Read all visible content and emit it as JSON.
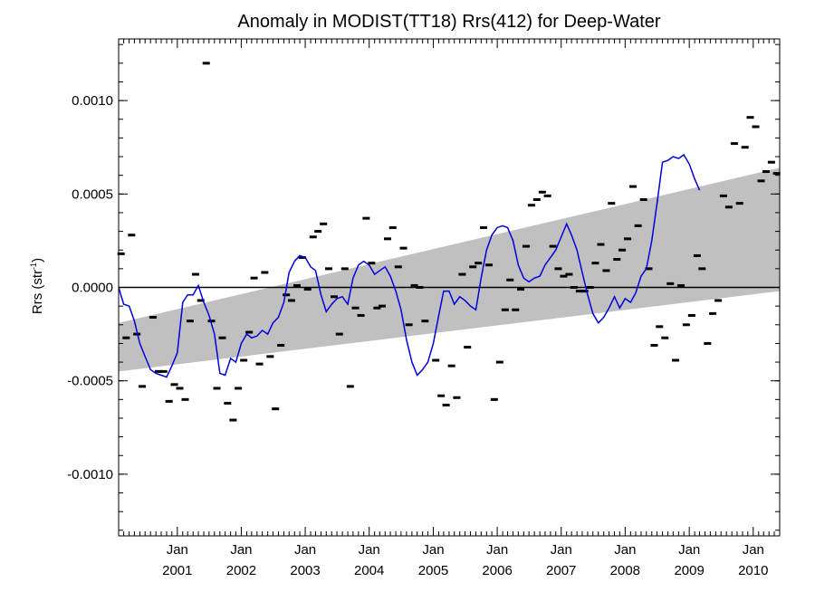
{
  "chart_data": {
    "type": "scatter",
    "title": "Anomaly in MODIST(TT18) Rrs(412) for Deep-Water",
    "ylabel": "Rrs (str",
    "ylabel_sup": "-1",
    "ylabel_close": ")",
    "xlabel": "",
    "xlim": [
      "2000-02-01",
      "2010-06-01"
    ],
    "ylim": [
      -0.00133,
      0.00133
    ],
    "y_ticks": [
      {
        "value": 0.001,
        "label": "0.0010"
      },
      {
        "value": 0.0005,
        "label": "0.0005"
      },
      {
        "value": 0.0,
        "label": "0.0000"
      },
      {
        "value": -0.0005,
        "label": "-0.0005"
      },
      {
        "value": -0.001,
        "label": "-0.0010"
      }
    ],
    "x_ticks": [
      {
        "date": "2001-01-01",
        "month": "Jan",
        "year": "2001"
      },
      {
        "date": "2002-01-01",
        "month": "Jan",
        "year": "2002"
      },
      {
        "date": "2003-01-01",
        "month": "Jan",
        "year": "2003"
      },
      {
        "date": "2004-01-01",
        "month": "Jan",
        "year": "2004"
      },
      {
        "date": "2005-01-01",
        "month": "Jan",
        "year": "2005"
      },
      {
        "date": "2006-01-01",
        "month": "Jan",
        "year": "2006"
      },
      {
        "date": "2007-01-01",
        "month": "Jan",
        "year": "2007"
      },
      {
        "date": "2008-01-01",
        "month": "Jan",
        "year": "2008"
      },
      {
        "date": "2009-01-01",
        "month": "Jan",
        "year": "2009"
      },
      {
        "date": "2010-01-01",
        "month": "Jan",
        "year": "2010"
      }
    ],
    "colors": {
      "points": "#000000",
      "smooth": "#0000dd",
      "band": "#c0c0c0",
      "zero_line": "#000000"
    },
    "band": {
      "start": {
        "date": "2000-02-01",
        "lower": -0.00045,
        "upper": -0.00019
      },
      "end": {
        "date": "2010-06-01",
        "lower": -2e-05,
        "upper": 0.00064
      }
    },
    "monthly_anomaly": [
      {
        "date": "2000-02",
        "value": 0.00018
      },
      {
        "date": "2000-03",
        "value": -0.00027
      },
      {
        "date": "2000-04",
        "value": 0.00028
      },
      {
        "date": "2000-05",
        "value": -0.00025
      },
      {
        "date": "2000-06",
        "value": -0.00053
      },
      {
        "date": "2000-08",
        "value": -0.00016
      },
      {
        "date": "2000-09",
        "value": -0.00045
      },
      {
        "date": "2000-10",
        "value": -0.00045
      },
      {
        "date": "2000-11",
        "value": -0.00061
      },
      {
        "date": "2000-12",
        "value": -0.00052
      },
      {
        "date": "2001-01",
        "value": -0.00054
      },
      {
        "date": "2001-02",
        "value": -0.0006
      },
      {
        "date": "2001-03",
        "value": -0.00018
      },
      {
        "date": "2001-04",
        "value": 7e-05
      },
      {
        "date": "2001-05",
        "value": -7e-05
      },
      {
        "date": "2001-06",
        "value": 0.0012
      },
      {
        "date": "2001-07",
        "value": -0.00018
      },
      {
        "date": "2001-08",
        "value": -0.00054
      },
      {
        "date": "2001-09",
        "value": -0.00027
      },
      {
        "date": "2001-10",
        "value": -0.00062
      },
      {
        "date": "2001-11",
        "value": -0.00071
      },
      {
        "date": "2001-12",
        "value": -0.00054
      },
      {
        "date": "2002-01",
        "value": -0.00039
      },
      {
        "date": "2002-02",
        "value": -0.00024
      },
      {
        "date": "2002-03",
        "value": 5e-05
      },
      {
        "date": "2002-04",
        "value": -0.00041
      },
      {
        "date": "2002-05",
        "value": 8e-05
      },
      {
        "date": "2002-06",
        "value": -0.00037
      },
      {
        "date": "2002-07",
        "value": -0.00065
      },
      {
        "date": "2002-08",
        "value": -0.00031
      },
      {
        "date": "2002-09",
        "value": -4e-05
      },
      {
        "date": "2002-10",
        "value": -7e-05
      },
      {
        "date": "2002-11",
        "value": 1e-05
      },
      {
        "date": "2002-12",
        "value": 0.00016
      },
      {
        "date": "2003-01",
        "value": -1e-05
      },
      {
        "date": "2003-02",
        "value": 0.00027
      },
      {
        "date": "2003-03",
        "value": 0.0003
      },
      {
        "date": "2003-04",
        "value": 0.00034
      },
      {
        "date": "2003-05",
        "value": 0.0001
      },
      {
        "date": "2003-06",
        "value": -5e-05
      },
      {
        "date": "2003-07",
        "value": -0.00025
      },
      {
        "date": "2003-08",
        "value": 0.0001
      },
      {
        "date": "2003-09",
        "value": -0.00053
      },
      {
        "date": "2003-10",
        "value": -0.00011
      },
      {
        "date": "2003-11",
        "value": -0.00015
      },
      {
        "date": "2003-12",
        "value": 0.00037
      },
      {
        "date": "2004-01",
        "value": 0.00013
      },
      {
        "date": "2004-02",
        "value": -0.00011
      },
      {
        "date": "2004-03",
        "value": -0.0001
      },
      {
        "date": "2004-04",
        "value": 0.00026
      },
      {
        "date": "2004-05",
        "value": 0.00032
      },
      {
        "date": "2004-06",
        "value": 0.00011
      },
      {
        "date": "2004-07",
        "value": 0.00021
      },
      {
        "date": "2004-08",
        "value": -0.0002
      },
      {
        "date": "2004-09",
        "value": 1e-05
      },
      {
        "date": "2004-10",
        "value": 0.0
      },
      {
        "date": "2004-11",
        "value": -0.00018
      },
      {
        "date": "2005-01",
        "value": -0.00039
      },
      {
        "date": "2005-02",
        "value": -0.00058
      },
      {
        "date": "2005-03",
        "value": -0.00063
      },
      {
        "date": "2005-04",
        "value": -0.00042
      },
      {
        "date": "2005-05",
        "value": -0.00059
      },
      {
        "date": "2005-06",
        "value": 7e-05
      },
      {
        "date": "2005-07",
        "value": -0.00032
      },
      {
        "date": "2005-08",
        "value": 0.00011
      },
      {
        "date": "2005-09",
        "value": 0.00013
      },
      {
        "date": "2005-10",
        "value": 0.00032
      },
      {
        "date": "2005-11",
        "value": 0.00012
      },
      {
        "date": "2005-12",
        "value": -0.0006
      },
      {
        "date": "2006-01",
        "value": -0.0004
      },
      {
        "date": "2006-02",
        "value": -0.00012
      },
      {
        "date": "2006-03",
        "value": 4e-05
      },
      {
        "date": "2006-04",
        "value": -0.00012
      },
      {
        "date": "2006-05",
        "value": -1e-05
      },
      {
        "date": "2006-06",
        "value": 0.00022
      },
      {
        "date": "2006-07",
        "value": 0.00044
      },
      {
        "date": "2006-08",
        "value": 0.00047
      },
      {
        "date": "2006-09",
        "value": 0.00051
      },
      {
        "date": "2006-10",
        "value": 0.00049
      },
      {
        "date": "2006-11",
        "value": 0.00022
      },
      {
        "date": "2006-12",
        "value": 0.0001
      },
      {
        "date": "2007-01",
        "value": 6e-05
      },
      {
        "date": "2007-02",
        "value": 7e-05
      },
      {
        "date": "2007-03",
        "value": 0.0
      },
      {
        "date": "2007-04",
        "value": -2e-05
      },
      {
        "date": "2007-05",
        "value": -2e-05
      },
      {
        "date": "2007-06",
        "value": 0.0
      },
      {
        "date": "2007-07",
        "value": 0.00013
      },
      {
        "date": "2007-08",
        "value": 0.00023
      },
      {
        "date": "2007-09",
        "value": 9e-05
      },
      {
        "date": "2007-10",
        "value": 0.00045
      },
      {
        "date": "2007-11",
        "value": 0.00015
      },
      {
        "date": "2007-12",
        "value": 0.0002
      },
      {
        "date": "2008-01",
        "value": 0.00026
      },
      {
        "date": "2008-02",
        "value": 0.00054
      },
      {
        "date": "2008-03",
        "value": 0.00033
      },
      {
        "date": "2008-04",
        "value": 0.00047
      },
      {
        "date": "2008-05",
        "value": 0.0001
      },
      {
        "date": "2008-06",
        "value": -0.00031
      },
      {
        "date": "2008-07",
        "value": -0.00021
      },
      {
        "date": "2008-08",
        "value": -0.00027
      },
      {
        "date": "2008-09",
        "value": 2e-05
      },
      {
        "date": "2008-10",
        "value": -0.00039
      },
      {
        "date": "2008-11",
        "value": 1e-05
      },
      {
        "date": "2008-12",
        "value": -0.0002
      },
      {
        "date": "2009-01",
        "value": -0.00015
      },
      {
        "date": "2009-02",
        "value": 0.00017
      },
      {
        "date": "2009-03",
        "value": 0.0001
      },
      {
        "date": "2009-04",
        "value": -0.0003
      },
      {
        "date": "2009-05",
        "value": -0.00014
      },
      {
        "date": "2009-06",
        "value": -7e-05
      },
      {
        "date": "2009-07",
        "value": 0.00049
      },
      {
        "date": "2009-08",
        "value": 0.00043
      },
      {
        "date": "2009-09",
        "value": 0.00077
      },
      {
        "date": "2009-10",
        "value": 0.00045
      },
      {
        "date": "2009-11",
        "value": 0.00075
      },
      {
        "date": "2009-12",
        "value": 0.00091
      },
      {
        "date": "2010-01",
        "value": 0.00086
      },
      {
        "date": "2010-02",
        "value": 0.00057
      },
      {
        "date": "2010-03",
        "value": 0.00062
      },
      {
        "date": "2010-04",
        "value": 0.00067
      },
      {
        "date": "2010-05",
        "value": 0.00061
      }
    ],
    "smoothed_line": [
      {
        "date": "2000-02-01",
        "value": 0.0
      },
      {
        "date": "2000-03-01",
        "value": -9e-05
      },
      {
        "date": "2000-04-01",
        "value": -0.0001
      },
      {
        "date": "2000-05-01",
        "value": -0.00018
      },
      {
        "date": "2000-06-01",
        "value": -0.0003
      },
      {
        "date": "2000-07-01",
        "value": -0.00037
      },
      {
        "date": "2000-08-01",
        "value": -0.00044
      },
      {
        "date": "2000-09-01",
        "value": -0.00046
      },
      {
        "date": "2000-10-01",
        "value": -0.00047
      },
      {
        "date": "2000-11-01",
        "value": -0.00048
      },
      {
        "date": "2000-12-01",
        "value": -0.00042
      },
      {
        "date": "2001-01-01",
        "value": -0.00035
      },
      {
        "date": "2001-02-01",
        "value": -8e-05
      },
      {
        "date": "2001-03-01",
        "value": -4e-05
      },
      {
        "date": "2001-04-01",
        "value": -4e-05
      },
      {
        "date": "2001-05-01",
        "value": 1e-05
      },
      {
        "date": "2001-06-01",
        "value": -8e-05
      },
      {
        "date": "2001-07-01",
        "value": -0.00015
      },
      {
        "date": "2001-08-01",
        "value": -0.00025
      },
      {
        "date": "2001-09-01",
        "value": -0.00046
      },
      {
        "date": "2001-10-01",
        "value": -0.00047
      },
      {
        "date": "2001-11-01",
        "value": -0.00038
      },
      {
        "date": "2001-12-01",
        "value": -0.0004
      },
      {
        "date": "2002-01-01",
        "value": -0.0003
      },
      {
        "date": "2002-02-01",
        "value": -0.00025
      },
      {
        "date": "2002-03-01",
        "value": -0.00027
      },
      {
        "date": "2002-04-01",
        "value": -0.00026
      },
      {
        "date": "2002-05-01",
        "value": -0.00023
      },
      {
        "date": "2002-06-01",
        "value": -0.00025
      },
      {
        "date": "2002-07-01",
        "value": -0.00019
      },
      {
        "date": "2002-08-01",
        "value": -0.00016
      },
      {
        "date": "2002-09-01",
        "value": -8e-05
      },
      {
        "date": "2002-10-01",
        "value": 8e-05
      },
      {
        "date": "2002-11-01",
        "value": 0.00014
      },
      {
        "date": "2002-12-01",
        "value": 0.00017
      },
      {
        "date": "2003-01-01",
        "value": 0.00016
      },
      {
        "date": "2003-02-01",
        "value": 0.00011
      },
      {
        "date": "2003-03-01",
        "value": 9e-05
      },
      {
        "date": "2003-04-01",
        "value": -4e-05
      },
      {
        "date": "2003-05-01",
        "value": -0.00013
      },
      {
        "date": "2003-06-01",
        "value": -9e-05
      },
      {
        "date": "2003-07-01",
        "value": -6e-05
      },
      {
        "date": "2003-08-01",
        "value": -5e-05
      },
      {
        "date": "2003-09-01",
        "value": -9e-05
      },
      {
        "date": "2003-10-01",
        "value": 5e-05
      },
      {
        "date": "2003-11-01",
        "value": 0.00012
      },
      {
        "date": "2003-12-01",
        "value": 0.00014
      },
      {
        "date": "2004-01-01",
        "value": 0.00012
      },
      {
        "date": "2004-02-01",
        "value": 7e-05
      },
      {
        "date": "2004-03-01",
        "value": 9e-05
      },
      {
        "date": "2004-04-01",
        "value": 0.00011
      },
      {
        "date": "2004-05-01",
        "value": 6e-05
      },
      {
        "date": "2004-06-01",
        "value": -2e-05
      },
      {
        "date": "2004-07-01",
        "value": -0.00012
      },
      {
        "date": "2004-08-01",
        "value": -0.00028
      },
      {
        "date": "2004-09-01",
        "value": -0.0004
      },
      {
        "date": "2004-10-01",
        "value": -0.00047
      },
      {
        "date": "2004-11-01",
        "value": -0.00044
      },
      {
        "date": "2004-12-01",
        "value": -0.0004
      },
      {
        "date": "2005-01-01",
        "value": -0.0003
      },
      {
        "date": "2005-02-01",
        "value": -0.00015
      },
      {
        "date": "2005-03-01",
        "value": -2e-05
      },
      {
        "date": "2005-04-01",
        "value": -2e-05
      },
      {
        "date": "2005-05-01",
        "value": -9e-05
      },
      {
        "date": "2005-06-01",
        "value": -5e-05
      },
      {
        "date": "2005-07-01",
        "value": -7e-05
      },
      {
        "date": "2005-08-01",
        "value": -0.0001
      },
      {
        "date": "2005-09-01",
        "value": -0.00012
      },
      {
        "date": "2005-10-01",
        "value": 5e-05
      },
      {
        "date": "2005-11-01",
        "value": 0.0002
      },
      {
        "date": "2005-12-01",
        "value": 0.00028
      },
      {
        "date": "2006-01-01",
        "value": 0.00032
      },
      {
        "date": "2006-02-01",
        "value": 0.00033
      },
      {
        "date": "2006-03-01",
        "value": 0.00032
      },
      {
        "date": "2006-04-01",
        "value": 0.00025
      },
      {
        "date": "2006-05-01",
        "value": 0.00012
      },
      {
        "date": "2006-06-01",
        "value": 5e-05
      },
      {
        "date": "2006-07-01",
        "value": 3e-05
      },
      {
        "date": "2006-08-01",
        "value": 5e-05
      },
      {
        "date": "2006-09-01",
        "value": 6e-05
      },
      {
        "date": "2006-10-01",
        "value": 0.00012
      },
      {
        "date": "2006-11-01",
        "value": 0.00016
      },
      {
        "date": "2006-12-01",
        "value": 0.0002
      },
      {
        "date": "2007-01-01",
        "value": 0.00027
      },
      {
        "date": "2007-02-01",
        "value": 0.00034
      },
      {
        "date": "2007-03-01",
        "value": 0.00028
      },
      {
        "date": "2007-04-01",
        "value": 0.0002
      },
      {
        "date": "2007-05-01",
        "value": 8e-05
      },
      {
        "date": "2007-06-01",
        "value": -4e-05
      },
      {
        "date": "2007-07-01",
        "value": -0.00014
      },
      {
        "date": "2007-08-01",
        "value": -0.00019
      },
      {
        "date": "2007-09-01",
        "value": -0.00016
      },
      {
        "date": "2007-10-01",
        "value": -0.00011
      },
      {
        "date": "2007-11-01",
        "value": -5e-05
      },
      {
        "date": "2007-12-01",
        "value": -0.00011
      },
      {
        "date": "2008-01-01",
        "value": -6e-05
      },
      {
        "date": "2008-02-01",
        "value": -8e-05
      },
      {
        "date": "2008-03-01",
        "value": -3e-05
      },
      {
        "date": "2008-04-01",
        "value": 6e-05
      },
      {
        "date": "2008-05-01",
        "value": 0.0001
      },
      {
        "date": "2008-06-01",
        "value": 0.00025
      },
      {
        "date": "2008-07-01",
        "value": 0.00045
      },
      {
        "date": "2008-08-01",
        "value": 0.00067
      },
      {
        "date": "2008-09-01",
        "value": 0.00068
      },
      {
        "date": "2008-10-01",
        "value": 0.0007
      },
      {
        "date": "2008-11-01",
        "value": 0.00069
      },
      {
        "date": "2008-12-01",
        "value": 0.00071
      },
      {
        "date": "2009-01-01",
        "value": 0.00066
      },
      {
        "date": "2009-02-01",
        "value": 0.00058
      },
      {
        "date": "2009-03-01",
        "value": 0.00052
      }
    ]
  }
}
